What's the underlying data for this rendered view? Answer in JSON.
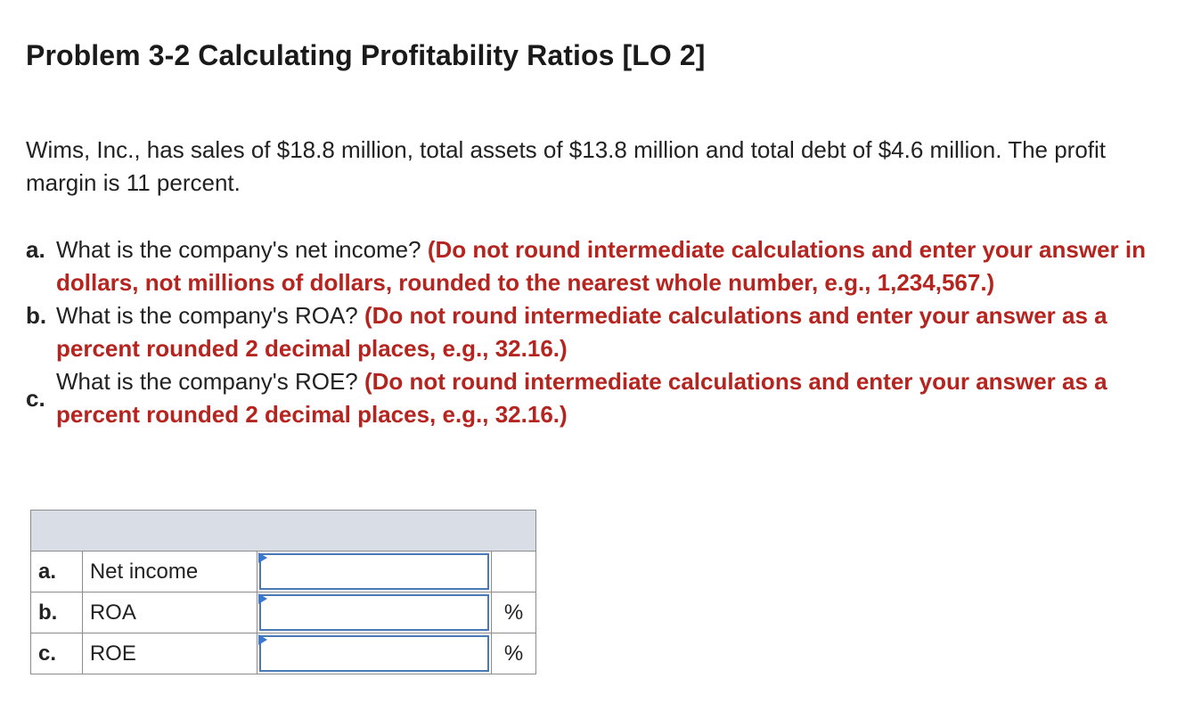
{
  "title": "Problem 3-2 Calculating Profitability Ratios [LO 2]",
  "intro": "Wims, Inc., has sales of $18.8 million, total assets of $13.8 million and total debt of $4.6 million. The profit margin is 11 percent.",
  "questions": [
    {
      "letter": "a.",
      "text": "What is the company's net income?",
      "instruction": "(Do not round intermediate calculations and enter your answer in dollars, not millions of dollars, rounded to the nearest whole number, e.g., 1,234,567.)"
    },
    {
      "letter": "b.",
      "text": "What is the company's ROA?",
      "instruction": "(Do not round intermediate calculations and enter your answer as a percent rounded 2 decimal places, e.g., 32.16.)"
    },
    {
      "letter": "c.",
      "text": "What is the company's ROE?",
      "instruction": "(Do not round intermediate calculations and enter your answer as a percent rounded 2 decimal places, e.g., 32.16.)"
    }
  ],
  "answer_table": {
    "rows": [
      {
        "letter": "a.",
        "label": "Net income",
        "value": "",
        "unit": ""
      },
      {
        "letter": "b.",
        "label": "ROA",
        "value": "",
        "unit": "%"
      },
      {
        "letter": "c.",
        "label": "ROE",
        "value": "",
        "unit": "%"
      }
    ]
  },
  "colors": {
    "instruction": "#b5241f",
    "header_fill": "#d9dde5",
    "input_border": "#4a7ab5",
    "flag": "#3a78d0"
  }
}
